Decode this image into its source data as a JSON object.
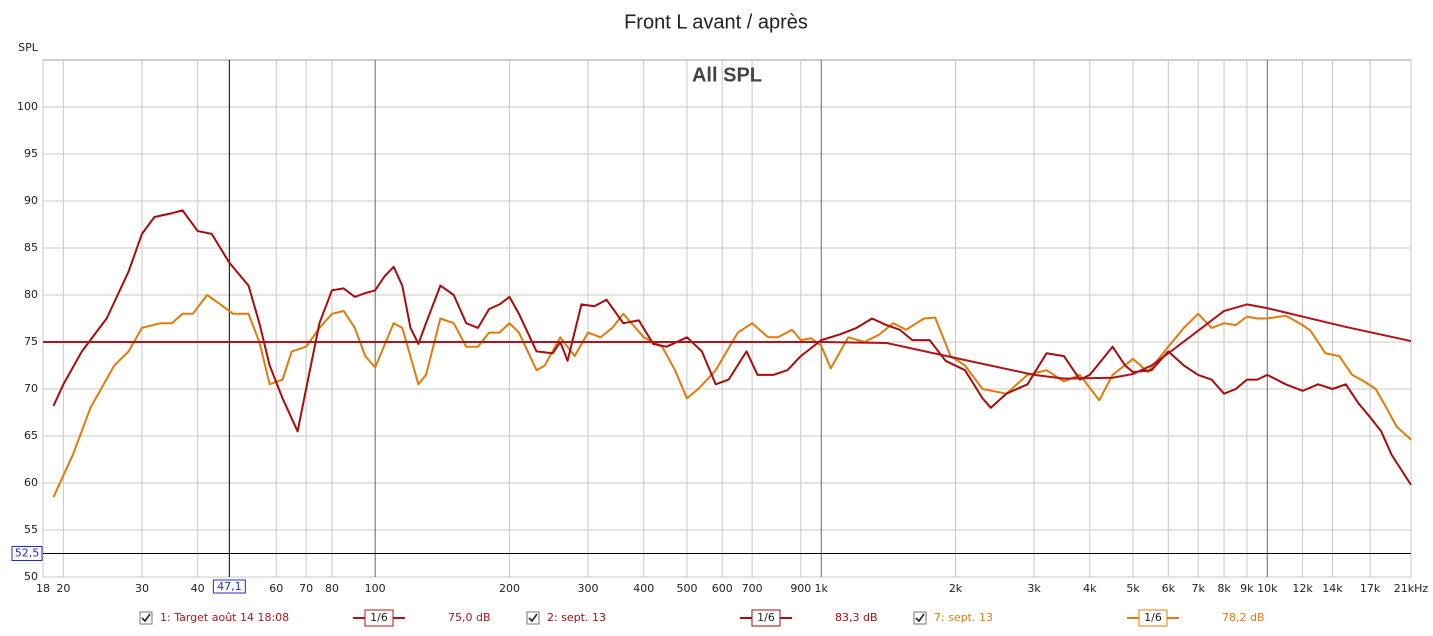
{
  "chart_data": {
    "type": "line",
    "title": "Front L avant / après",
    "overlay_label": "All SPL",
    "y_label": "SPL",
    "xscale": "log",
    "xlim": [
      18,
      21000
    ],
    "ylim": [
      50,
      105
    ],
    "grid": true,
    "xticks": [
      18,
      20,
      30,
      40,
      60,
      70,
      80,
      100,
      200,
      300,
      400,
      500,
      600,
      700,
      900,
      {
        "value": 1000,
        "label": "1k"
      },
      {
        "value": 2000,
        "label": "2k"
      },
      {
        "value": 3000,
        "label": "3k"
      },
      {
        "value": 4000,
        "label": "4k"
      },
      {
        "value": 5000,
        "label": "5k"
      },
      {
        "value": 6000,
        "label": "6k"
      },
      {
        "value": 7000,
        "label": "7k"
      },
      {
        "value": 8000,
        "label": "8k"
      },
      {
        "value": 9000,
        "label": "9k"
      },
      {
        "value": 10000,
        "label": "10k"
      },
      {
        "value": 12000,
        "label": "12k"
      },
      {
        "value": 14000,
        "label": "14k"
      },
      {
        "value": 17000,
        "label": "17k"
      },
      {
        "value": 21000,
        "label": "21kHz"
      }
    ],
    "yticks": [
      50,
      55,
      60,
      65,
      70,
      75,
      80,
      85,
      90,
      95,
      100
    ],
    "cursor": {
      "x": {
        "value": 47.1,
        "label": "47,1"
      },
      "y": {
        "value": 52.5,
        "label": "52,5"
      }
    },
    "series": [
      {
        "name": "1: Target août 14 18:08",
        "color": "#b0141a",
        "smoothing": "1/6",
        "level": "75,0 dB",
        "x": [
          18,
          1000,
          1400,
          2000,
          3000,
          3500,
          4500,
          5000,
          5500,
          6000,
          7000,
          8000,
          9000,
          10000,
          15000,
          21000
        ],
        "values": [
          75,
          75,
          74.9,
          73.3,
          71.5,
          71.1,
          71.2,
          71.6,
          72.5,
          73.8,
          76.2,
          78.3,
          79,
          78.6,
          76.6,
          75.1
        ]
      },
      {
        "name": "2: sept. 13",
        "color": "#a80c0c",
        "smoothing": "1/6",
        "level": "83,3 dB",
        "x": [
          19,
          20,
          22,
          25,
          28,
          30,
          32,
          35,
          37,
          40,
          43,
          47,
          52,
          55,
          58,
          62,
          67,
          70,
          75,
          80,
          85,
          90,
          95,
          100,
          105,
          110,
          115,
          120,
          125,
          130,
          140,
          150,
          160,
          170,
          180,
          190,
          200,
          210,
          230,
          250,
          260,
          270,
          290,
          310,
          330,
          360,
          390,
          420,
          450,
          500,
          540,
          580,
          620,
          680,
          720,
          780,
          840,
          900,
          1000,
          1100,
          1200,
          1300,
          1400,
          1500,
          1600,
          1750,
          1900,
          2100,
          2300,
          2400,
          2600,
          2900,
          3200,
          3500,
          3800,
          4000,
          4500,
          4800,
          5000,
          5500,
          6000,
          6500,
          7000,
          7500,
          8000,
          8500,
          9000,
          9500,
          10000,
          11000,
          12000,
          13000,
          14000,
          15000,
          16000,
          17000,
          18000,
          19000,
          21000
        ],
        "values": [
          68.2,
          70.5,
          74,
          77.5,
          82.5,
          86.5,
          88.3,
          88.7,
          89,
          86.8,
          86.5,
          83.5,
          81,
          77,
          72.5,
          69,
          65.5,
          70,
          77,
          80.5,
          80.7,
          79.8,
          80.2,
          80.5,
          82,
          83,
          81,
          76.5,
          74.8,
          77,
          81,
          80,
          77,
          76.5,
          78.5,
          79,
          79.8,
          78,
          74,
          73.8,
          75,
          73,
          79,
          78.8,
          79.5,
          77,
          77.3,
          74.8,
          74.5,
          75.5,
          74,
          70.5,
          71,
          74,
          71.5,
          71.5,
          72,
          73.5,
          75.2,
          75.8,
          76.5,
          77.5,
          76.8,
          76.3,
          75.2,
          75.2,
          73,
          72,
          69,
          68,
          69.5,
          70.5,
          73.8,
          73.5,
          71,
          71.5,
          74.5,
          72.5,
          71.8,
          72,
          74,
          72.5,
          71.5,
          71,
          69.5,
          70,
          71,
          71,
          71.5,
          70.5,
          69.8,
          70.5,
          70,
          70.5,
          68.5,
          67,
          65.5,
          63,
          59.8
        ]
      },
      {
        "name": "7: sept. 13",
        "color": "#e07b0c",
        "smoothing": "1/6",
        "level": "78,2 dB",
        "x": [
          19,
          21,
          23,
          26,
          28,
          30,
          33,
          35,
          37,
          39,
          42,
          45,
          48,
          52,
          55,
          58,
          62,
          65,
          70,
          75,
          80,
          85,
          90,
          95,
          100,
          110,
          115,
          125,
          130,
          140,
          150,
          160,
          170,
          180,
          190,
          200,
          210,
          230,
          240,
          260,
          280,
          300,
          320,
          340,
          360,
          400,
          440,
          470,
          500,
          530,
          580,
          650,
          700,
          760,
          800,
          860,
          900,
          950,
          1000,
          1050,
          1150,
          1250,
          1350,
          1450,
          1550,
          1700,
          1800,
          1950,
          2100,
          2300,
          2600,
          2900,
          3200,
          3500,
          3800,
          4200,
          4500,
          5000,
          5400,
          6000,
          6500,
          7000,
          7500,
          8000,
          8500,
          9000,
          9500,
          10000,
          11000,
          12000,
          12500,
          13500,
          14500,
          15500,
          16500,
          17500,
          18500,
          19500,
          21000
        ],
        "values": [
          58.5,
          63,
          68,
          72.5,
          74,
          76.5,
          77,
          77,
          78,
          78,
          80,
          79,
          78,
          78,
          75,
          70.5,
          71,
          74,
          74.5,
          76.5,
          78,
          78.3,
          76.5,
          73.5,
          72.3,
          77,
          76.5,
          70.5,
          71.5,
          77.5,
          77,
          74.5,
          74.5,
          76,
          76,
          77,
          76,
          72,
          72.5,
          75.5,
          73.5,
          76,
          75.5,
          76.5,
          78,
          75.5,
          74.5,
          72,
          69,
          70,
          72,
          76,
          77,
          75.5,
          75.5,
          76.3,
          75.2,
          75.4,
          74.6,
          72.2,
          75.5,
          75,
          75.8,
          77,
          76.3,
          77.5,
          77.6,
          73.5,
          72.5,
          70,
          69.5,
          71.5,
          72,
          70.8,
          71.5,
          68.8,
          71.5,
          73.2,
          71.8,
          74.5,
          76.5,
          78,
          76.5,
          77,
          76.8,
          77.7,
          77.5,
          77.5,
          77.8,
          76.8,
          76.2,
          73.8,
          73.5,
          71.5,
          70.8,
          70,
          68,
          66,
          64.6
        ]
      }
    ]
  }
}
